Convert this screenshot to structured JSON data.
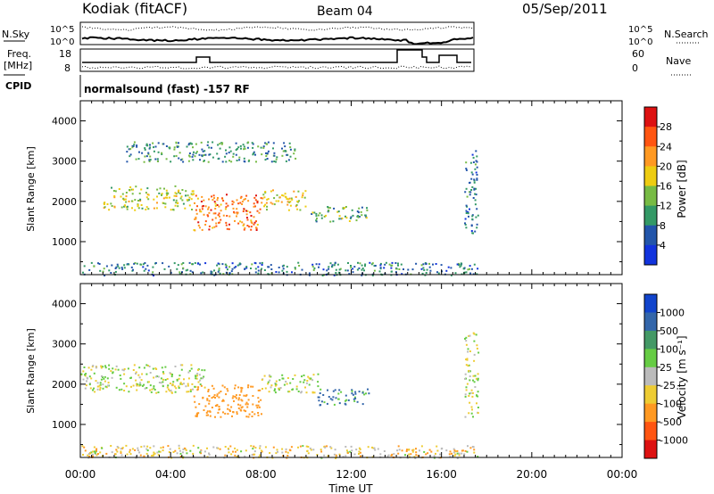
{
  "header": {
    "station": "Kodiak (fitACF)",
    "beam": "Beam 04",
    "date": "05/Sep/2011"
  },
  "noise_panel": {
    "left_label": "N.Sky",
    "right_label": "N.Search",
    "ticks": [
      "10^5",
      "10^0"
    ]
  },
  "freq_panel": {
    "left_label_1": "Freq.",
    "left_label_2": "[MHz]",
    "left_ticks": [
      "18",
      "8"
    ],
    "right_label": "Nave",
    "right_ticks": [
      "60",
      "0"
    ]
  },
  "cpid": {
    "label": "CPID",
    "value": "normalsound (fast) -157 RF"
  },
  "x_axis": {
    "label": "Time UT",
    "ticks": [
      "00:00",
      "04:00",
      "08:00",
      "12:00",
      "16:00",
      "20:00",
      "00:00"
    ]
  },
  "power_colorbar": {
    "label": "Power [dB]",
    "ticks": [
      "28",
      "24",
      "20",
      "16",
      "12",
      "8",
      "4"
    ],
    "colors": [
      "#dd1111",
      "#ff5511",
      "#ff9922",
      "#eecc11",
      "#77bb44",
      "#339966",
      "#2255aa",
      "#1133dd"
    ]
  },
  "velocity_colorbar": {
    "label": "Velocity [m s⁻¹]",
    "ticks": [
      "1000",
      "500",
      "100",
      "25",
      "-25",
      "-100",
      "-500",
      "-1000"
    ],
    "colors": [
      "#1144cc",
      "#3366aa",
      "#449966",
      "#66cc44",
      "#bbbbbb",
      "#eecc33",
      "#ff9922",
      "#ff5511",
      "#dd1111"
    ]
  },
  "chart_data": [
    {
      "type": "heatmap",
      "title": "Power",
      "xlabel": "Time UT",
      "ylabel": "Slant Range [km]",
      "xlim": [
        0,
        24
      ],
      "ylim": [
        180,
        4500
      ],
      "yticks": [
        1000,
        2000,
        3000,
        4000
      ],
      "data_end_hour": 17.6,
      "colorbar": {
        "label": "Power [dB]",
        "ticks": [
          4,
          8,
          12,
          16,
          20,
          24,
          28
        ]
      },
      "echo_regions": [
        {
          "t": [
            1.0,
            5.0
          ],
          "range": [
            1800,
            2400
          ],
          "power_db": 14
        },
        {
          "t": [
            5.0,
            8.0
          ],
          "range": [
            1300,
            2200
          ],
          "power_db": 22
        },
        {
          "t": [
            8.0,
            10.0
          ],
          "range": [
            1800,
            2300
          ],
          "power_db": 16
        },
        {
          "t": [
            10.2,
            12.8
          ],
          "range": [
            1500,
            1900
          ],
          "power_db": 10
        },
        {
          "t": [
            2.0,
            9.5
          ],
          "range": [
            3000,
            3500
          ],
          "power_db": 8
        },
        {
          "t": [
            17.0,
            17.6
          ],
          "range": [
            1200,
            3300
          ],
          "power_db": 6
        },
        {
          "t": [
            0,
            17.6
          ],
          "range": [
            180,
            500
          ],
          "power_db": 6
        }
      ]
    },
    {
      "type": "heatmap",
      "title": "Velocity",
      "xlabel": "Time UT",
      "ylabel": "Slant Range [km]",
      "xlim": [
        0,
        24
      ],
      "ylim": [
        180,
        4500
      ],
      "yticks": [
        1000,
        2000,
        3000,
        4000
      ],
      "data_end_hour": 17.6,
      "colorbar": {
        "label": "Velocity [m s⁻¹]",
        "ticks": [
          -1000,
          -500,
          -100,
          -25,
          25,
          100,
          500,
          1000
        ]
      },
      "echo_regions": [
        {
          "t": [
            0,
            5.5
          ],
          "range": [
            1800,
            2500
          ],
          "velocity": 0
        },
        {
          "t": [
            5.0,
            8.0
          ],
          "range": [
            1200,
            2000
          ],
          "velocity": -300
        },
        {
          "t": [
            8.0,
            10.5
          ],
          "range": [
            1800,
            2300
          ],
          "velocity": 0
        },
        {
          "t": [
            10.5,
            12.8
          ],
          "range": [
            1500,
            1900
          ],
          "velocity": 150
        },
        {
          "t": [
            0,
            17.6
          ],
          "range": [
            180,
            500
          ],
          "velocity": -60
        },
        {
          "t": [
            17.0,
            17.6
          ],
          "range": [
            1200,
            3300
          ],
          "velocity": 0
        }
      ]
    }
  ]
}
